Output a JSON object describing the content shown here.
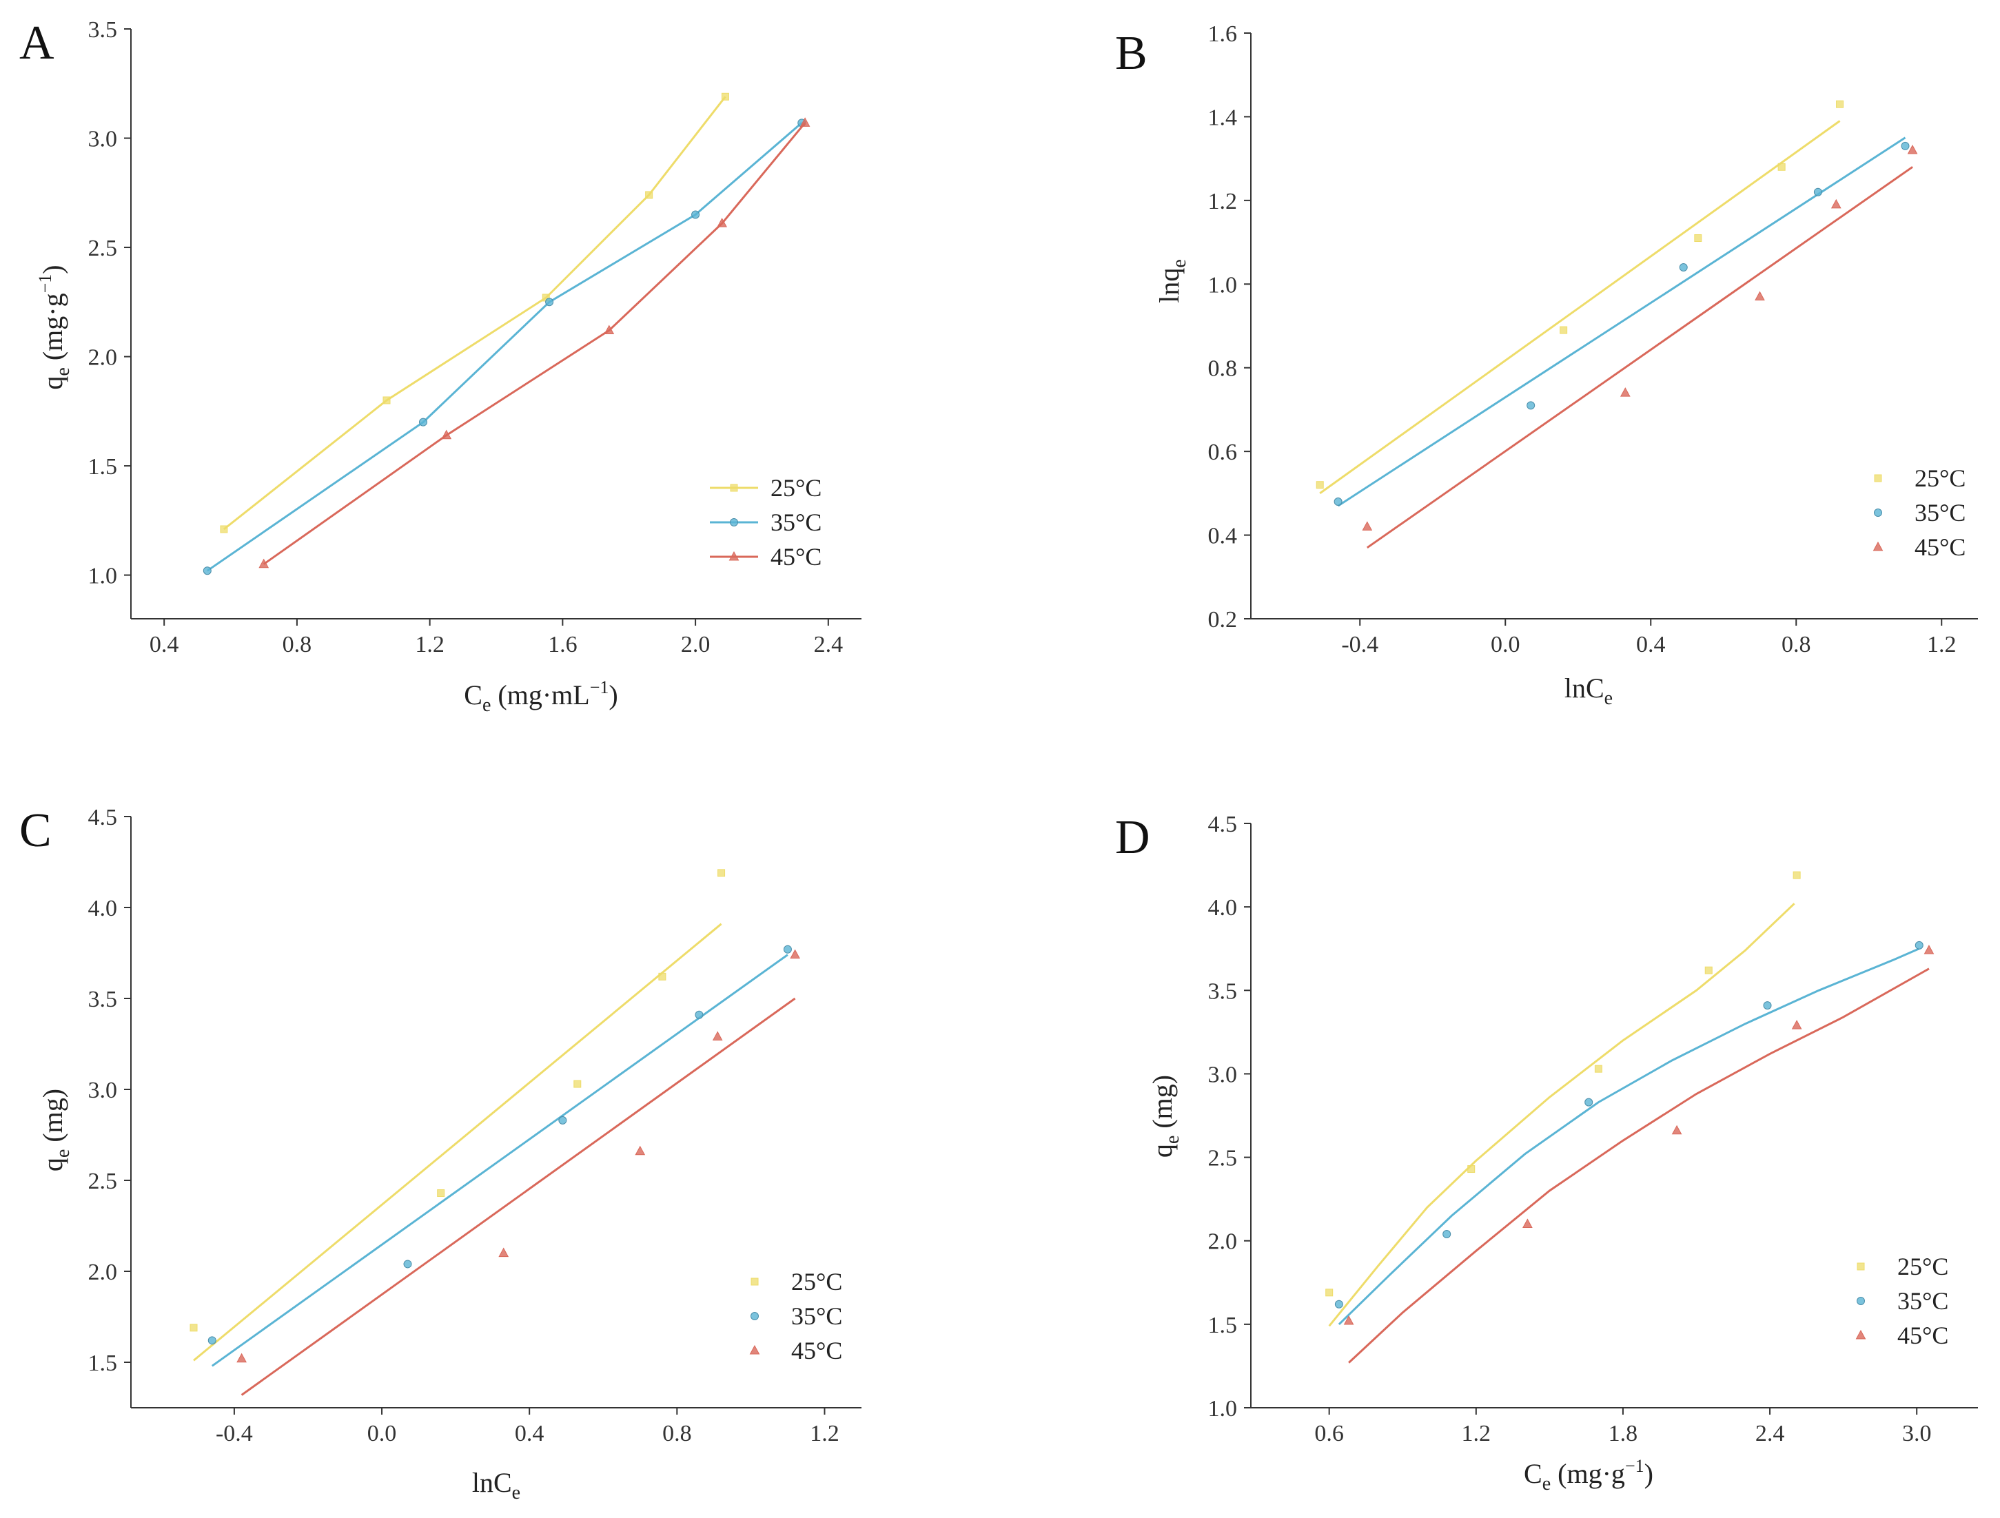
{
  "colors": {
    "t25": "#eedc6a",
    "t35": "#5ab4d4",
    "t45": "#d9685a"
  },
  "chart_data": [
    {
      "panel": "A",
      "type": "line",
      "xlabel": "Ce (mg·mL⁻¹)",
      "ylabel": "qe (mg·g⁻¹)",
      "xlim": [
        0.3,
        2.5
      ],
      "ylim": [
        0.8,
        3.5
      ],
      "xticks": [
        "0.4",
        "0.8",
        "1.2",
        "1.6",
        "2.0",
        "2.4"
      ],
      "yticks": [
        "1.0",
        "1.5",
        "2.0",
        "2.5",
        "3.0",
        "3.5"
      ],
      "legend_position": "bottom-right",
      "series": [
        {
          "name": "25°C",
          "marker": "square",
          "points": [
            [
              0.58,
              1.21
            ],
            [
              1.07,
              1.8
            ],
            [
              1.55,
              2.27
            ],
            [
              1.86,
              2.74
            ],
            [
              2.09,
              3.19
            ]
          ],
          "fit": [
            [
              0.58,
              1.21
            ],
            [
              1.07,
              1.8
            ],
            [
              1.55,
              2.27
            ],
            [
              1.86,
              2.74
            ],
            [
              2.09,
              3.19
            ]
          ]
        },
        {
          "name": "35°C",
          "marker": "circle",
          "points": [
            [
              0.53,
              1.02
            ],
            [
              1.18,
              1.7
            ],
            [
              1.56,
              2.25
            ],
            [
              2.0,
              2.65
            ],
            [
              2.32,
              3.07
            ]
          ],
          "fit": [
            [
              0.53,
              1.02
            ],
            [
              1.18,
              1.7
            ],
            [
              1.56,
              2.25
            ],
            [
              2.0,
              2.65
            ],
            [
              2.32,
              3.07
            ]
          ]
        },
        {
          "name": "45°C",
          "marker": "triangle",
          "points": [
            [
              0.7,
              1.05
            ],
            [
              1.25,
              1.64
            ],
            [
              1.74,
              2.12
            ],
            [
              2.08,
              2.61
            ],
            [
              2.33,
              3.07
            ]
          ],
          "fit": [
            [
              0.7,
              1.05
            ],
            [
              1.25,
              1.64
            ],
            [
              1.74,
              2.12
            ],
            [
              2.08,
              2.61
            ],
            [
              2.33,
              3.07
            ]
          ]
        }
      ]
    },
    {
      "panel": "B",
      "type": "scatter",
      "xlabel": "lnCe",
      "ylabel": "lnqe",
      "xlim": [
        -0.7,
        1.3
      ],
      "ylim": [
        0.2,
        1.6
      ],
      "xticks": [
        "-0.4",
        "0.0",
        "0.4",
        "0.8",
        "1.2"
      ],
      "yticks": [
        "0.2",
        "0.4",
        "0.6",
        "0.8",
        "1.0",
        "1.2",
        "1.4",
        "1.6"
      ],
      "legend_position": "bottom-right",
      "series": [
        {
          "name": "25°C",
          "marker": "square",
          "points": [
            [
              -0.51,
              0.52
            ],
            [
              0.16,
              0.89
            ],
            [
              0.53,
              1.11
            ],
            [
              0.76,
              1.28
            ],
            [
              0.92,
              1.43
            ]
          ],
          "fit": [
            [
              -0.51,
              0.5
            ],
            [
              0.92,
              1.39
            ]
          ]
        },
        {
          "name": "35°C",
          "marker": "circle",
          "points": [
            [
              -0.46,
              0.48
            ],
            [
              0.07,
              0.71
            ],
            [
              0.49,
              1.04
            ],
            [
              0.86,
              1.22
            ],
            [
              1.1,
              1.33
            ]
          ],
          "fit": [
            [
              -0.46,
              0.47
            ],
            [
              1.1,
              1.35
            ]
          ]
        },
        {
          "name": "45°C",
          "marker": "triangle",
          "points": [
            [
              -0.38,
              0.42
            ],
            [
              0.33,
              0.74
            ],
            [
              0.7,
              0.97
            ],
            [
              0.91,
              1.19
            ],
            [
              1.12,
              1.32
            ]
          ],
          "fit": [
            [
              -0.38,
              0.37
            ],
            [
              1.12,
              1.28
            ]
          ]
        }
      ]
    },
    {
      "panel": "C",
      "type": "scatter",
      "xlabel": "lnCe",
      "ylabel": "qe (mg)",
      "xlim": [
        -0.68,
        1.3
      ],
      "ylim": [
        1.25,
        4.5
      ],
      "xticks": [
        "-0.4",
        "0.0",
        "0.4",
        "0.8",
        "1.2"
      ],
      "yticks": [
        "1.5",
        "2.0",
        "2.5",
        "3.0",
        "3.5",
        "4.0",
        "4.5"
      ],
      "legend_position": "bottom-right",
      "series": [
        {
          "name": "25°C",
          "marker": "square",
          "points": [
            [
              -0.51,
              1.69
            ],
            [
              0.16,
              2.43
            ],
            [
              0.53,
              3.03
            ],
            [
              0.76,
              3.62
            ],
            [
              0.92,
              4.19
            ]
          ],
          "fit": [
            [
              -0.51,
              1.51
            ],
            [
              0.92,
              3.91
            ]
          ]
        },
        {
          "name": "35°C",
          "marker": "circle",
          "points": [
            [
              -0.46,
              1.62
            ],
            [
              0.07,
              2.04
            ],
            [
              0.49,
              2.83
            ],
            [
              0.86,
              3.41
            ],
            [
              1.1,
              3.77
            ]
          ],
          "fit": [
            [
              -0.46,
              1.48
            ],
            [
              1.1,
              3.74
            ]
          ]
        },
        {
          "name": "45°C",
          "marker": "triangle",
          "points": [
            [
              -0.38,
              1.52
            ],
            [
              0.33,
              2.1
            ],
            [
              0.7,
              2.66
            ],
            [
              0.91,
              3.29
            ],
            [
              1.12,
              3.74
            ]
          ],
          "fit": [
            [
              -0.38,
              1.32
            ],
            [
              1.12,
              3.5
            ]
          ]
        }
      ]
    },
    {
      "panel": "D",
      "type": "scatter",
      "xlabel": "Ce (mg·g⁻¹)",
      "ylabel": "qe (mg)",
      "xlim": [
        0.28,
        3.25
      ],
      "ylim": [
        1.0,
        4.5
      ],
      "xticks": [
        "0.6",
        "1.2",
        "1.8",
        "2.4",
        "3.0"
      ],
      "yticks": [
        "1.0",
        "1.5",
        "2.0",
        "2.5",
        "3.0",
        "3.5",
        "4.0",
        "4.5"
      ],
      "legend_position": "bottom-right",
      "series": [
        {
          "name": "25°C",
          "marker": "square",
          "points": [
            [
              0.6,
              1.69
            ],
            [
              1.18,
              2.43
            ],
            [
              1.7,
              3.03
            ],
            [
              2.15,
              3.62
            ],
            [
              2.51,
              4.19
            ]
          ],
          "fit": [
            [
              0.6,
              1.49
            ],
            [
              0.8,
              1.85
            ],
            [
              1.0,
              2.2
            ],
            [
              1.2,
              2.48
            ],
            [
              1.5,
              2.86
            ],
            [
              1.8,
              3.2
            ],
            [
              2.1,
              3.5
            ],
            [
              2.3,
              3.74
            ],
            [
              2.5,
              4.02
            ]
          ]
        },
        {
          "name": "35°C",
          "marker": "circle",
          "points": [
            [
              0.64,
              1.62
            ],
            [
              1.08,
              2.04
            ],
            [
              1.66,
              2.83
            ],
            [
              2.39,
              3.41
            ],
            [
              3.01,
              3.77
            ]
          ],
          "fit": [
            [
              0.64,
              1.5
            ],
            [
              0.85,
              1.8
            ],
            [
              1.1,
              2.15
            ],
            [
              1.4,
              2.52
            ],
            [
              1.7,
              2.83
            ],
            [
              2.0,
              3.08
            ],
            [
              2.3,
              3.3
            ],
            [
              2.6,
              3.5
            ],
            [
              2.9,
              3.68
            ],
            [
              3.01,
              3.75
            ]
          ]
        },
        {
          "name": "45°C",
          "marker": "triangle",
          "points": [
            [
              0.68,
              1.52
            ],
            [
              1.41,
              2.1
            ],
            [
              2.02,
              2.66
            ],
            [
              2.51,
              3.29
            ],
            [
              3.05,
              3.74
            ]
          ],
          "fit": [
            [
              0.68,
              1.27
            ],
            [
              0.9,
              1.57
            ],
            [
              1.2,
              1.94
            ],
            [
              1.5,
              2.3
            ],
            [
              1.8,
              2.6
            ],
            [
              2.1,
              2.88
            ],
            [
              2.4,
              3.12
            ],
            [
              2.7,
              3.34
            ],
            [
              3.05,
              3.63
            ]
          ]
        }
      ]
    }
  ]
}
